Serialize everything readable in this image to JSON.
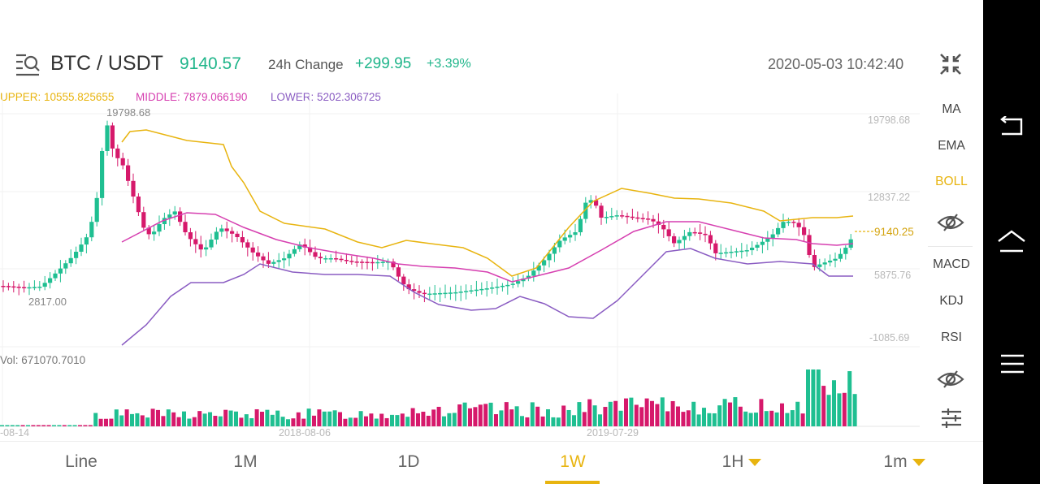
{
  "header": {
    "pair": "BTC / USDT",
    "price": "9140.57",
    "change_label": "24h Change",
    "change": "+299.95",
    "change_pct": "+3.39%",
    "datetime": "2020-05-03 10:42:40"
  },
  "boll": {
    "upper": "UPPER: 10555.825655",
    "middle": "MIDDLE: 7879.066190",
    "lower": "LOWER: 5202.306725",
    "upper_color": "#e8b40f",
    "middle_color": "#d63fb0",
    "lower_color": "#8a5cc2"
  },
  "chart": {
    "high_label": "19798.68",
    "low_label": "2817.00",
    "y_axis": [
      "19798.68",
      "12837.22",
      "5875.76",
      "-1085.69"
    ],
    "current_price": "9140.25",
    "volume_label": "Vol: 671070.7010",
    "dates": [
      "-08-14",
      "2018-08-06",
      "2019-07-29"
    ],
    "up_color": "#1fbf91",
    "down_color": "#d6196b"
  },
  "indicators": [
    "MA",
    "EMA",
    "BOLL",
    "MACD",
    "KDJ",
    "RSI"
  ],
  "active_indicator": "BOLL",
  "timeframes": [
    "Line",
    "1M",
    "1D",
    "1W",
    "1H",
    "1m"
  ],
  "active_timeframe": "1W"
}
